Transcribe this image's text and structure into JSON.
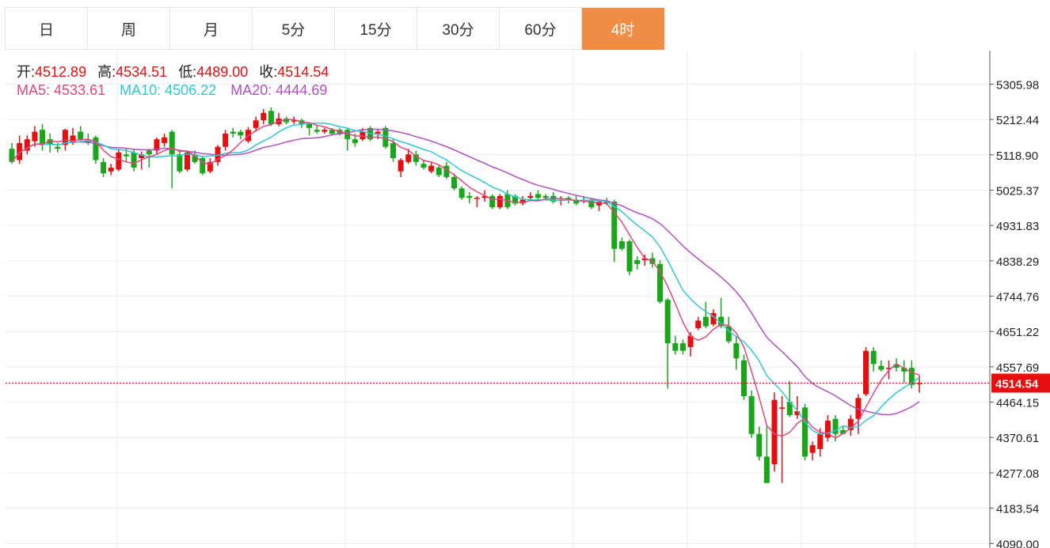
{
  "tabs": [
    {
      "label": "日",
      "active": false
    },
    {
      "label": "周",
      "active": false
    },
    {
      "label": "月",
      "active": false
    },
    {
      "label": "5分",
      "active": false
    },
    {
      "label": "15分",
      "active": false
    },
    {
      "label": "30分",
      "active": false
    },
    {
      "label": "60分",
      "active": false
    },
    {
      "label": "4时",
      "active": true
    }
  ],
  "ohlc": {
    "open_label": "开:",
    "open": "4512.89",
    "high_label": "高:",
    "high": "4534.51",
    "low_label": "低:",
    "low": "4489.00",
    "close_label": "收:",
    "close": "4514.54"
  },
  "ma": {
    "ma5_label": "MA5:",
    "ma5": "4533.61",
    "ma10_label": "MA10:",
    "ma10": "4506.22",
    "ma20_label": "MA20:",
    "ma20": "4444.69"
  },
  "colors": {
    "up": "#e60e0e",
    "down": "#1aa61a",
    "ma5": "#e5457f",
    "ma10": "#2ec8d4",
    "ma20": "#b04fc0",
    "active_tab": "#f08c44",
    "grid": "#e6ecef"
  },
  "chart_data": {
    "type": "candlestick",
    "y_ticks": [
      "5305.98",
      "5212.44",
      "5118.90",
      "5025.37",
      "4931.83",
      "4838.29",
      "4744.76",
      "4651.22",
      "4557.69",
      "4464.15",
      "4370.61",
      "4277.08",
      "4183.54",
      "4090.00"
    ],
    "ylim": [
      4090.0,
      5400.0
    ],
    "last_price": "4514.54",
    "candles": [
      [
        5135,
        5100,
        5150,
        5095
      ],
      [
        5105,
        5150,
        5170,
        5095
      ],
      [
        5130,
        5160,
        5170,
        5120
      ],
      [
        5155,
        5180,
        5195,
        5140
      ],
      [
        5185,
        5145,
        5200,
        5130
      ],
      [
        5160,
        5145,
        5175,
        5125
      ],
      [
        5140,
        5135,
        5150,
        5125
      ],
      [
        5145,
        5185,
        5188,
        5130
      ],
      [
        5150,
        5170,
        5190,
        5145
      ],
      [
        5180,
        5160,
        5195,
        5155
      ],
      [
        5155,
        5150,
        5175,
        5145
      ],
      [
        5165,
        5105,
        5170,
        5095
      ],
      [
        5100,
        5070,
        5110,
        5060
      ],
      [
        5075,
        5085,
        5095,
        5065
      ],
      [
        5080,
        5125,
        5135,
        5075
      ],
      [
        5120,
        5115,
        5135,
        5100
      ],
      [
        5125,
        5085,
        5135,
        5075
      ],
      [
        5110,
        5120,
        5128,
        5080
      ],
      [
        5130,
        5120,
        5135,
        5085
      ],
      [
        5130,
        5160,
        5165,
        5120
      ],
      [
        5150,
        5165,
        5175,
        5140
      ],
      [
        5180,
        5120,
        5185,
        5030
      ],
      [
        5120,
        5075,
        5130,
        5070
      ],
      [
        5080,
        5125,
        5130,
        5075
      ],
      [
        5120,
        5100,
        5130,
        5095
      ],
      [
        5110,
        5070,
        5115,
        5065
      ],
      [
        5075,
        5100,
        5110,
        5070
      ],
      [
        5100,
        5140,
        5145,
        5090
      ],
      [
        5140,
        5175,
        5185,
        5130
      ],
      [
        5180,
        5175,
        5190,
        5165
      ],
      [
        5180,
        5170,
        5185,
        5160
      ],
      [
        5155,
        5185,
        5192,
        5150
      ],
      [
        5190,
        5210,
        5220,
        5180
      ],
      [
        5210,
        5230,
        5240,
        5200
      ],
      [
        5235,
        5200,
        5245,
        5195
      ],
      [
        5200,
        5215,
        5230,
        5195
      ],
      [
        5215,
        5205,
        5220,
        5200
      ],
      [
        5210,
        5210,
        5220,
        5200
      ],
      [
        5210,
        5200,
        5215,
        5190
      ],
      [
        5200,
        5190,
        5205,
        5170
      ],
      [
        5185,
        5180,
        5195,
        5175
      ],
      [
        5180,
        5185,
        5190,
        5175
      ],
      [
        5185,
        5175,
        5190,
        5170
      ],
      [
        5185,
        5175,
        5190,
        5170
      ],
      [
        5185,
        5160,
        5190,
        5130
      ],
      [
        5160,
        5150,
        5175,
        5140
      ],
      [
        5160,
        5180,
        5190,
        5155
      ],
      [
        5190,
        5160,
        5195,
        5155
      ],
      [
        5175,
        5180,
        5185,
        5160
      ],
      [
        5190,
        5140,
        5195,
        5135
      ],
      [
        5150,
        5110,
        5160,
        5100
      ],
      [
        5075,
        5105,
        5110,
        5060
      ],
      [
        5100,
        5120,
        5135,
        5095
      ],
      [
        5120,
        5100,
        5130,
        5090
      ],
      [
        5095,
        5085,
        5105,
        5080
      ],
      [
        5075,
        5090,
        5100,
        5070
      ],
      [
        5085,
        5065,
        5090,
        5060
      ],
      [
        5090,
        5060,
        5100,
        5055
      ],
      [
        5060,
        5030,
        5070,
        5025
      ],
      [
        5030,
        5005,
        5035,
        5000
      ],
      [
        5010,
        5005,
        5020,
        4990
      ],
      [
        5005,
        5005,
        5010,
        4980
      ],
      [
        5005,
        5010,
        5025,
        4995
      ],
      [
        5010,
        4980,
        5015,
        4975
      ],
      [
        4980,
        5010,
        5015,
        4975
      ],
      [
        5015,
        4980,
        5025,
        4975
      ],
      [
        5010,
        4990,
        5015,
        4985
      ],
      [
        4990,
        5000,
        5010,
        4985
      ],
      [
        5005,
        5010,
        5020,
        5000
      ],
      [
        5015,
        5005,
        5025,
        5000
      ],
      [
        5010,
        5005,
        5015,
        5000
      ],
      [
        5010,
        4995,
        5020,
        4990
      ],
      [
        5000,
        5000,
        5010,
        4985
      ],
      [
        5005,
        5000,
        5010,
        4990
      ],
      [
        5000,
        4990,
        5010,
        4985
      ],
      [
        5000,
        4995,
        5010,
        4990
      ],
      [
        5000,
        4980,
        5005,
        4975
      ],
      [
        4985,
        4995,
        5000,
        4970
      ],
      [
        4995,
        4990,
        5005,
        4985
      ],
      [
        4995,
        4870,
        5000,
        4835
      ],
      [
        4890,
        4870,
        4900,
        4865
      ],
      [
        4890,
        4810,
        4895,
        4800
      ],
      [
        4840,
        4830,
        4850,
        4815
      ],
      [
        4840,
        4845,
        4855,
        4825
      ],
      [
        4845,
        4830,
        4860,
        4820
      ],
      [
        4830,
        4730,
        4840,
        4725
      ],
      [
        4735,
        4620,
        4740,
        4500
      ],
      [
        4620,
        4600,
        4640,
        4590
      ],
      [
        4620,
        4600,
        4630,
        4590
      ],
      [
        4610,
        4640,
        4650,
        4585
      ],
      [
        4660,
        4680,
        4690,
        4655
      ],
      [
        4690,
        4665,
        4730,
        4660
      ],
      [
        4670,
        4700,
        4710,
        4665
      ],
      [
        4690,
        4665,
        4740,
        4660
      ],
      [
        4665,
        4625,
        4690,
        4620
      ],
      [
        4620,
        4580,
        4640,
        4550
      ],
      [
        4575,
        4480,
        4590,
        4470
      ],
      [
        4480,
        4380,
        4495,
        4370
      ],
      [
        4380,
        4320,
        4400,
        4310
      ],
      [
        4320,
        4250,
        4400,
        4300
      ],
      [
        4300,
        4470,
        4490,
        4280
      ],
      [
        4450,
        4450,
        4480,
        4250
      ],
      [
        4465,
        4430,
        4520,
        4425
      ],
      [
        4430,
        4440,
        4480,
        4420
      ],
      [
        4450,
        4320,
        4460,
        4310
      ],
      [
        4330,
        4350,
        4360,
        4310
      ],
      [
        4340,
        4380,
        4395,
        4320
      ],
      [
        4370,
        4415,
        4430,
        4360
      ],
      [
        4420,
        4380,
        4430,
        4360
      ],
      [
        4390,
        4380,
        4400,
        4380
      ],
      [
        4390,
        4420,
        4430,
        4375
      ],
      [
        4420,
        4475,
        4485,
        4380
      ],
      [
        4485,
        4600,
        4610,
        4480
      ],
      [
        4600,
        4565,
        4610,
        4545
      ],
      [
        4560,
        4550,
        4575,
        4545
      ],
      [
        4555,
        4555,
        4575,
        4525
      ],
      [
        4565,
        4555,
        4580,
        4545
      ],
      [
        4555,
        4545,
        4575,
        4515
      ],
      [
        4555,
        4510,
        4575,
        4500
      ],
      [
        4513,
        4515,
        4535,
        4489
      ]
    ]
  }
}
